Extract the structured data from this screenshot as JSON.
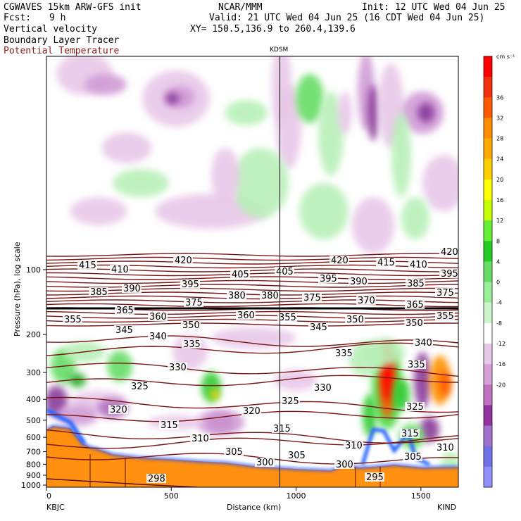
{
  "header": {
    "line1_left": "CGWAVES 15km ARW-GFS init",
    "line1_mid": "NCAR/MMM",
    "line1_right": "Init: 12 UTC Wed 04 Jun 25",
    "fcst_label": "Fcst:",
    "fcst_value": "9 h",
    "valid": "Valid: 21 UTC Wed 04 Jun 25 (16 CDT Wed 04 Jun 25)",
    "field1": "Vertical velocity",
    "field2": "Boundary Layer Tracer",
    "field3": "Potential Temperature",
    "xy": "XY= 150.5,136.9 to 260.4,139.6",
    "field3_color": "#8b1a1a"
  },
  "chart_data": {
    "type": "heatmap",
    "title": "",
    "xlabel": "Distance (km)",
    "ylabel": "Pressure (hPa), log scale",
    "x_ticks": [
      0,
      500,
      1000,
      1500
    ],
    "y_ticks": [
      100,
      200,
      300,
      400,
      500,
      600,
      700,
      800,
      900,
      1000
    ],
    "xlim": [
      0,
      1650
    ],
    "ylog": true,
    "left_station": "KBJC",
    "right_station": "KIND",
    "mid_station": "KDSM",
    "mid_station_km": 935,
    "colorbar_unit": "cm s⁻¹",
    "colorbar_levels": [
      36,
      32,
      28,
      24,
      20,
      16,
      12,
      8,
      4,
      0,
      -4,
      -8,
      -12,
      -16,
      -20
    ],
    "colorbar_colors": [
      "#ff0000",
      "#f2300e",
      "#ff5a00",
      "#ff8c00",
      "#ffaa00",
      "#ffd000",
      "#ffff00",
      "#c6ff00",
      "#66ee33",
      "#22cc22",
      "#66dd66",
      "#99ee99",
      "#ccf5cc",
      "#ffffff",
      "#e8c8e8",
      "#d8a0d8",
      "#c070c0",
      "#9030a0",
      "#a070d0",
      "#7070e8",
      "#9090ff"
    ],
    "theta_labels": [
      {
        "t": "420",
        "x": 248,
        "y": 374
      },
      {
        "t": "420",
        "x": 470,
        "y": 374
      },
      {
        "t": "420",
        "x": 626,
        "y": 362
      },
      {
        "t": "415",
        "x": 112,
        "y": 381
      },
      {
        "t": "415",
        "x": 536,
        "y": 377
      },
      {
        "t": "410",
        "x": 158,
        "y": 387
      },
      {
        "t": "410",
        "x": 582,
        "y": 380
      },
      {
        "t": "405",
        "x": 329,
        "y": 394
      },
      {
        "t": "405",
        "x": 392,
        "y": 390
      },
      {
        "t": "395",
        "x": 258,
        "y": 408
      },
      {
        "t": "395",
        "x": 454,
        "y": 400
      },
      {
        "t": "395",
        "x": 626,
        "y": 393
      },
      {
        "t": "390",
        "x": 175,
        "y": 414
      },
      {
        "t": "390",
        "x": 497,
        "y": 404
      },
      {
        "t": "385",
        "x": 128,
        "y": 419
      },
      {
        "t": "385",
        "x": 578,
        "y": 407
      },
      {
        "t": "380",
        "x": 324,
        "y": 424
      },
      {
        "t": "380",
        "x": 371,
        "y": 424
      },
      {
        "t": "375",
        "x": 263,
        "y": 434
      },
      {
        "t": "375",
        "x": 431,
        "y": 427
      },
      {
        "t": "375",
        "x": 620,
        "y": 420
      },
      {
        "t": "370",
        "x": 508,
        "y": 431
      },
      {
        "t": "365",
        "x": 165,
        "y": 445
      },
      {
        "t": "365",
        "x": 577,
        "y": 437
      },
      {
        "t": "360",
        "x": 212,
        "y": 454
      },
      {
        "t": "360",
        "x": 337,
        "y": 452
      },
      {
        "t": "355",
        "x": 91,
        "y": 458
      },
      {
        "t": "355",
        "x": 396,
        "y": 455
      },
      {
        "t": "355",
        "x": 620,
        "y": 453
      },
      {
        "t": "350",
        "x": 259,
        "y": 466
      },
      {
        "t": "350",
        "x": 492,
        "y": 458
      },
      {
        "t": "350",
        "x": 576,
        "y": 463
      },
      {
        "t": "345",
        "x": 164,
        "y": 473
      },
      {
        "t": "345",
        "x": 440,
        "y": 469
      },
      {
        "t": "340",
        "x": 212,
        "y": 482
      },
      {
        "t": "340",
        "x": 589,
        "y": 491
      },
      {
        "t": "335",
        "x": 260,
        "y": 493
      },
      {
        "t": "335",
        "x": 476,
        "y": 506
      },
      {
        "t": "335",
        "x": 579,
        "y": 522
      },
      {
        "t": "330",
        "x": 240,
        "y": 526
      },
      {
        "t": "330",
        "x": 446,
        "y": 555
      },
      {
        "t": "325",
        "x": 186,
        "y": 553
      },
      {
        "t": "325",
        "x": 400,
        "y": 574
      },
      {
        "t": "325",
        "x": 577,
        "y": 582
      },
      {
        "t": "320",
        "x": 156,
        "y": 586
      },
      {
        "t": "320",
        "x": 345,
        "y": 588
      },
      {
        "t": "315",
        "x": 228,
        "y": 608
      },
      {
        "t": "315",
        "x": 388,
        "y": 613
      },
      {
        "t": "315",
        "x": 570,
        "y": 620
      },
      {
        "t": "310",
        "x": 272,
        "y": 627
      },
      {
        "t": "310",
        "x": 490,
        "y": 637
      },
      {
        "t": "310",
        "x": 620,
        "y": 640
      },
      {
        "t": "305",
        "x": 320,
        "y": 646
      },
      {
        "t": "305",
        "x": 409,
        "y": 651
      },
      {
        "t": "305",
        "x": 574,
        "y": 653
      },
      {
        "t": "300",
        "x": 364,
        "y": 661
      },
      {
        "t": "300",
        "x": 477,
        "y": 664
      },
      {
        "t": "298",
        "x": 210,
        "y": 684
      },
      {
        "t": "295",
        "x": 520,
        "y": 682
      }
    ]
  }
}
